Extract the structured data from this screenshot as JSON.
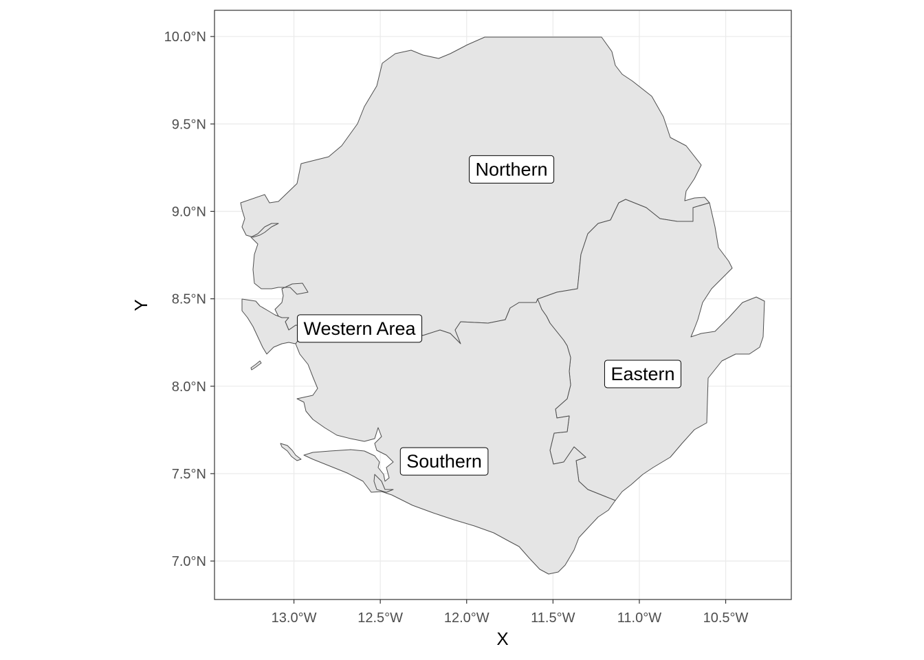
{
  "map": {
    "xlabel": "X",
    "ylabel": "Y",
    "x_ticks": [
      {
        "lon": -13.0,
        "label": "13.0°W"
      },
      {
        "lon": -12.5,
        "label": "12.5°W"
      },
      {
        "lon": -12.0,
        "label": "12.0°W"
      },
      {
        "lon": -11.5,
        "label": "11.5°W"
      },
      {
        "lon": -11.0,
        "label": "11.0°W"
      },
      {
        "lon": -10.5,
        "label": "10.5°W"
      }
    ],
    "y_ticks": [
      {
        "lat": 10.0,
        "label": "10.0°N"
      },
      {
        "lat": 9.5,
        "label": "9.5°N"
      },
      {
        "lat": 9.0,
        "label": "9.0°N"
      },
      {
        "lat": 8.5,
        "label": "8.5°N"
      },
      {
        "lat": 8.0,
        "label": "8.0°N"
      },
      {
        "lat": 7.5,
        "label": "7.5°N"
      },
      {
        "lat": 7.0,
        "label": "7.0°N"
      }
    ],
    "extent": {
      "lon_min": -13.46,
      "lon_max": -10.12,
      "lat_min": 6.78,
      "lat_max": 10.15
    },
    "colors": {
      "land_fill": "#e5e5e5",
      "border": "#4d4d4d",
      "grid": "#ebebeb",
      "panel_border": "#333333",
      "label_bg": "#ffffff"
    },
    "regions": [
      {
        "name": "Northern",
        "label_lon": -11.74,
        "label_lat": 9.24
      },
      {
        "name": "Western Area",
        "label_lon": -12.62,
        "label_lat": 8.33
      },
      {
        "name": "Eastern",
        "label_lon": -10.98,
        "label_lat": 8.07
      },
      {
        "name": "Southern",
        "label_lon": -12.13,
        "label_lat": 7.57
      }
    ]
  }
}
